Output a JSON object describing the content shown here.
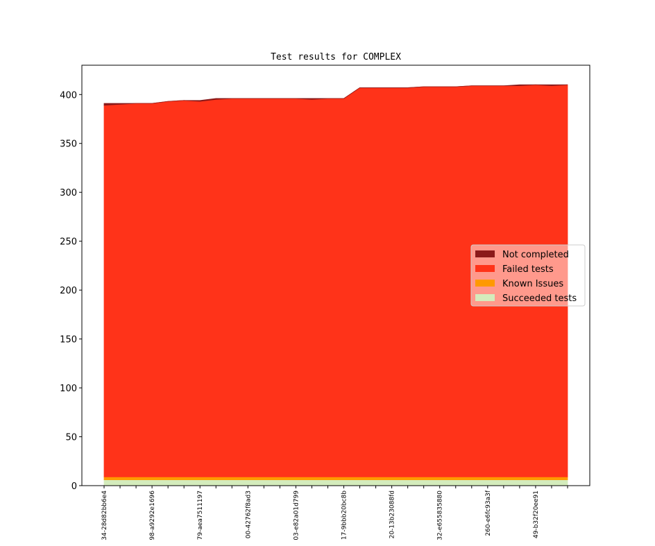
{
  "chart_data": {
    "type": "stacked_area",
    "title": "Test results for COMPLEX",
    "categories": [
      "34-28d82bb6e4",
      null,
      null,
      "98-a9292e1696",
      null,
      null,
      "79-aea7511197",
      null,
      null,
      "00-42762f8ad3",
      null,
      null,
      "03-e82a01d799",
      null,
      null,
      "17-9bbb20bc8b",
      null,
      null,
      "20-13b23088fd",
      null,
      null,
      "32-e655835880",
      null,
      null,
      "260-e6fc93a3f",
      null,
      null,
      "49-b32f20ee91",
      null,
      null
    ],
    "series": [
      {
        "name": "Not completed",
        "color": "#8b1a1a",
        "values": [
          2,
          1,
          0,
          0,
          0,
          0,
          1,
          1,
          0,
          0,
          0,
          0,
          0,
          1,
          0,
          0,
          0,
          0,
          0,
          0,
          0,
          0,
          0,
          0,
          0,
          0,
          1,
          0,
          1,
          0
        ]
      },
      {
        "name": "Failed tests",
        "color": "#ff3319",
        "values": [
          380,
          381,
          382,
          382,
          384,
          385,
          384,
          386,
          387,
          387,
          387,
          387,
          387,
          386,
          387,
          387,
          398,
          398,
          398,
          398,
          399,
          399,
          399,
          400,
          400,
          400,
          400,
          401,
          400,
          401
        ]
      },
      {
        "name": "Known Issues",
        "color": "#ff9900",
        "values": [
          3,
          3,
          3,
          3,
          3,
          3,
          3,
          3,
          3,
          3,
          3,
          3,
          3,
          3,
          3,
          3,
          3,
          3,
          3,
          3,
          3,
          3,
          3,
          3,
          3,
          3,
          3,
          3,
          3,
          3
        ]
      },
      {
        "name": "Succeeded tests",
        "color": "#d4ecbc",
        "values": [
          6,
          6,
          6,
          6,
          6,
          6,
          6,
          6,
          6,
          6,
          6,
          6,
          6,
          6,
          6,
          6,
          6,
          6,
          6,
          6,
          6,
          6,
          6,
          6,
          6,
          6,
          6,
          6,
          6,
          6
        ]
      }
    ],
    "ylim": [
      0,
      430
    ],
    "yticks": [
      0,
      50,
      100,
      150,
      200,
      250,
      300,
      350,
      400
    ],
    "legend": "right"
  }
}
